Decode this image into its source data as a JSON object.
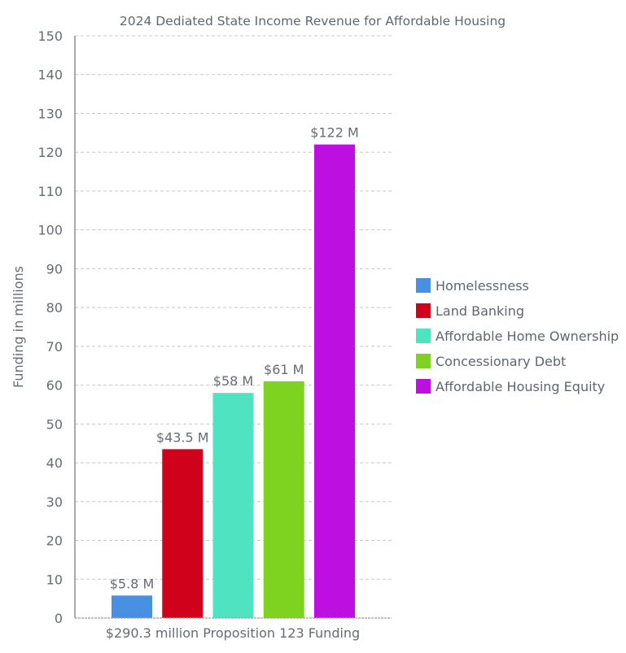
{
  "chart_data": {
    "type": "bar",
    "title": "2024 Dediated State Income Revenue for Affordable Housing",
    "xlabel": "$290.3 million Proposition 123 Funding",
    "ylabel": "Funding in millions",
    "ylim": [
      0,
      150
    ],
    "yticks": [
      0,
      10,
      20,
      30,
      40,
      50,
      60,
      70,
      80,
      90,
      100,
      110,
      120,
      130,
      140,
      150
    ],
    "grid": true,
    "legend_position": "right",
    "series": [
      {
        "name": "Homelessness",
        "value": 5.8,
        "label": "$5.8 M",
        "color": "#4a90e2"
      },
      {
        "name": "Land Banking",
        "value": 43.5,
        "label": "$43.5 M",
        "color": "#d0021b"
      },
      {
        "name": "Affordable Home Ownership",
        "value": 58,
        "label": "$58 M",
        "color": "#50e3c2"
      },
      {
        "name": "Concessionary Debt",
        "value": 61,
        "label": "$61 M",
        "color": "#7ed321"
      },
      {
        "name": "Affordable Housing Equity",
        "value": 122,
        "label": "$122 M",
        "color": "#bd10e0"
      }
    ]
  }
}
